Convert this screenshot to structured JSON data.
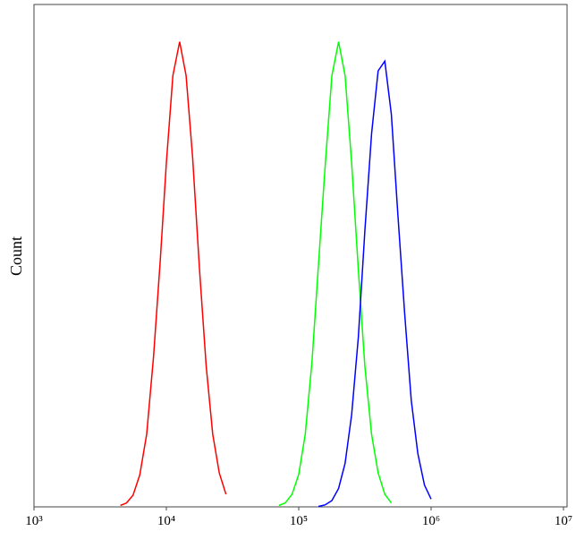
{
  "chart_data": {
    "type": "line",
    "y_label": "Count",
    "x_log": true,
    "xlim": [
      1000,
      10000000
    ],
    "ylim": [
      0,
      100
    ],
    "xticks": [
      {
        "value": 1000,
        "label": "10³"
      },
      {
        "value": 10000,
        "label": "10⁴"
      },
      {
        "value": 100000,
        "label": "10⁵"
      },
      {
        "value": 1000000,
        "label": "10⁶"
      },
      {
        "value": 10000000,
        "label": "10⁷"
      }
    ],
    "series": [
      {
        "color": "#ff0000",
        "x": [
          4500,
          5000,
          5600,
          6300,
          7100,
          8000,
          9000,
          10000,
          11200,
          12600,
          14100,
          15800,
          17800,
          20000,
          22400,
          25100,
          28200
        ],
        "values": [
          0.3,
          0.8,
          2.4,
          6.6,
          15,
          31,
          51,
          71,
          89,
          96,
          89,
          72,
          49,
          29,
          15,
          7,
          2.6
        ]
      },
      {
        "color": "#00ff00",
        "x": [
          71000,
          79000,
          89000,
          100000,
          112000,
          126000,
          141000,
          158000,
          178000,
          200000,
          224000,
          251000,
          282000,
          316000,
          355000,
          398000,
          447000,
          501000
        ],
        "values": [
          0.3,
          0.8,
          2.6,
          6.7,
          15,
          30,
          50,
          70,
          89,
          96,
          89,
          71,
          49,
          29,
          15,
          7,
          2.6,
          0.8
        ]
      },
      {
        "color": "#0000ff",
        "x": [
          141000,
          158000,
          178000,
          200000,
          224000,
          251000,
          282000,
          316000,
          355000,
          398000,
          447000,
          501000,
          562000,
          631000,
          708000,
          794000,
          891000,
          1000000
        ],
        "values": [
          0.1,
          0.4,
          1.3,
          3.8,
          9,
          19,
          35,
          57,
          77,
          90,
          92,
          81,
          60,
          40,
          22,
          11,
          4.5,
          1.6
        ]
      }
    ]
  }
}
